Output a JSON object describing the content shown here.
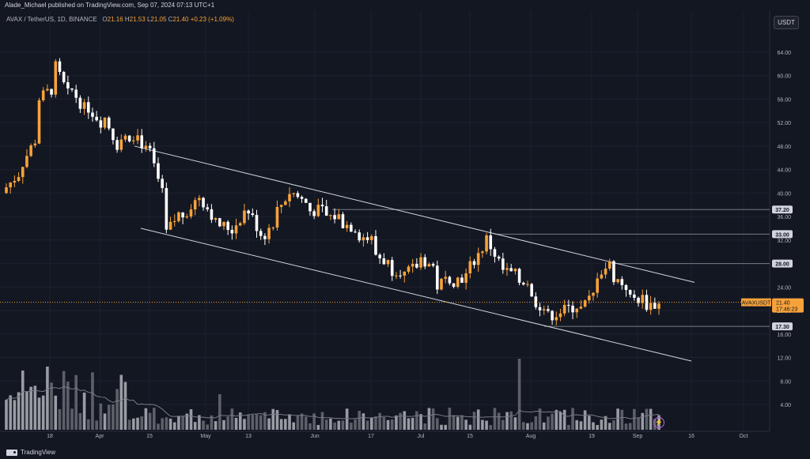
{
  "header": {
    "publisher": "Alade_Michael published on TradingView.com, Sep 07, 2024 07:13 UTC+1",
    "symbol": "AVAX / TetherUS, 1D, BINANCE",
    "open_label": "O",
    "open": "21.16",
    "high_label": "H",
    "high": "21.53",
    "low_label": "L",
    "low": "21.05",
    "close_label": "C",
    "close": "21.40",
    "change": "+0.23 (+1.09%)",
    "currency": "USDT"
  },
  "footer": {
    "logo_text": "TradingView",
    "bolt_icon": "lightning-icon"
  },
  "colors": {
    "bg": "#131722",
    "up": "#f7a23a",
    "down": "#ffffff",
    "grid": "#1e2230",
    "text": "#b2b5be",
    "label_bg": "#d1d4dc",
    "price_label": "#f7a23a"
  },
  "chart_data": {
    "type": "candlestick",
    "symbol_tag": "AVAXUSDT",
    "last_price": "21.40",
    "countdown": "17:46:23",
    "y_ticks": [
      4,
      8,
      12,
      16,
      20,
      24,
      28,
      32,
      36,
      40,
      44,
      48,
      52,
      56,
      60,
      64
    ],
    "y_tick_labels": [
      "4.00",
      "8.00",
      "12.00",
      "16.00",
      "20.00",
      "24.00",
      "28.00",
      "32.00",
      "36.00",
      "40.00",
      "44.00",
      "48.00",
      "52.00",
      "56.00",
      "60.00",
      "64.00"
    ],
    "x_labels": [
      "18",
      "Apr",
      "15",
      "May",
      "13",
      "Jun",
      "17",
      "Jul",
      "15",
      "Aug",
      "19",
      "Sep",
      "16",
      "Oct"
    ],
    "level_lines": [
      {
        "value": 37.2,
        "label": "37.20"
      },
      {
        "value": 33.0,
        "label": "33.00"
      },
      {
        "value": 28.0,
        "label": "28.00"
      },
      {
        "value": 17.3,
        "label": "17.30"
      }
    ],
    "channel_upper": {
      "from": [
        "Apr 13",
        48.0
      ],
      "to": [
        "Sep 16",
        24.8
      ]
    },
    "channel_lower": {
      "from": [
        "Apr 13",
        34.0
      ],
      "to": [
        "Sep 16",
        11.4
      ]
    },
    "close_path": [
      [
        40,
        41
      ],
      [
        44,
        45
      ],
      [
        50,
        56
      ],
      [
        58,
        62
      ],
      [
        56,
        58
      ],
      [
        54,
        55
      ],
      [
        52,
        54
      ],
      [
        48,
        49
      ],
      [
        50,
        51
      ],
      [
        46,
        47
      ],
      [
        38,
        33
      ],
      [
        37,
        36
      ],
      [
        39,
        40
      ],
      [
        36,
        35
      ],
      [
        34,
        33
      ],
      [
        37,
        38
      ],
      [
        33,
        32
      ],
      [
        36,
        37
      ],
      [
        41,
        40
      ],
      [
        38,
        37
      ],
      [
        37,
        36
      ],
      [
        36,
        35
      ],
      [
        34,
        33
      ],
      [
        32,
        30
      ],
      [
        28,
        27
      ],
      [
        27,
        26
      ],
      [
        28,
        29
      ],
      [
        27,
        24
      ],
      [
        26,
        25
      ],
      [
        26,
        27
      ],
      [
        31,
        33
      ],
      [
        28,
        27
      ],
      [
        26,
        25
      ],
      [
        25,
        22
      ],
      [
        20,
        19
      ],
      [
        20,
        20
      ],
      [
        21,
        20
      ],
      [
        23,
        26
      ],
      [
        28,
        26
      ],
      [
        24,
        22
      ],
      [
        22,
        21
      ],
      [
        21,
        21
      ]
    ],
    "volume_scale": "relative"
  }
}
